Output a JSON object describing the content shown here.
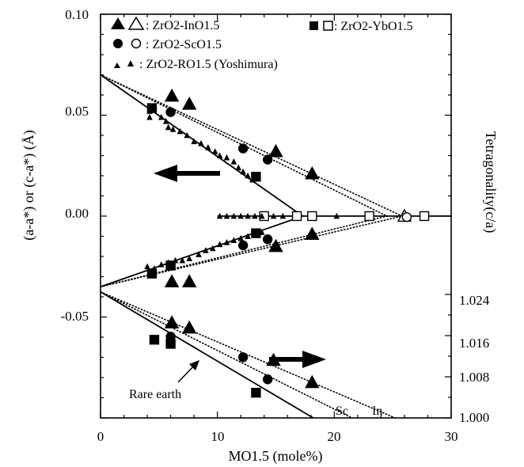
{
  "chart_data": {
    "type": "scatter",
    "title": "",
    "xlabel": "MO1.5 (mole%)",
    "ylabel_left": "(a-a*) or (c-a*) (Å)",
    "ylabel_right": "Tetragonality(c/a)",
    "xlim": [
      0,
      30
    ],
    "ylim": [
      -0.1,
      0.1
    ],
    "x_ticks": [
      "0",
      "10",
      "20",
      "30"
    ],
    "y_ticks_left": [
      "0.10",
      "0.05",
      "0.00",
      "-0.05"
    ],
    "y_ticks_right": [
      "1.024",
      "1.016",
      "1.008",
      "1.000"
    ],
    "right_axis_range": [
      1.0,
      1.03
    ],
    "legend": [
      {
        "symbols": "▲△",
        "label": ": ZrO2-InO1.5"
      },
      {
        "symbols": "●○",
        "label": ": ZrO2-ScO1.5"
      },
      {
        "symbols": "▴▴",
        "label": ": ZrO2-RO1.5 (Yoshimura)"
      },
      {
        "symbols": "■□",
        "label": ": ZrO2-YbO1.5"
      }
    ],
    "annotations": {
      "rare_earth": "Rare earth",
      "sc": "Sc",
      "in": "In"
    },
    "series": [
      {
        "name": "ZrO2-InO1.5 (a-a*)",
        "marker": "triangle-filled",
        "points": [
          [
            6.1,
            0.0595
          ],
          [
            7.6,
            0.0555
          ],
          [
            15,
            0.032
          ],
          [
            18.1,
            0.021
          ]
        ]
      },
      {
        "name": "ZrO2-InO1.5 (c-a*)",
        "marker": "triangle-filled",
        "points": [
          [
            6.1,
            -0.0325
          ],
          [
            7.6,
            -0.0325
          ],
          [
            15,
            -0.015
          ],
          [
            18.1,
            -0.009
          ]
        ]
      },
      {
        "name": "ZrO2-InO1.5 (c/a)",
        "marker": "triangle-filled",
        "right_axis": true,
        "points": [
          [
            6.1,
            1.0185
          ],
          [
            7.6,
            1.0175
          ],
          [
            14.8,
            1.0112
          ],
          [
            18.1,
            1.0069
          ]
        ]
      },
      {
        "name": "ZrO2-InO1.5 (cubic)",
        "marker": "triangle-open",
        "points": [
          [
            26,
            0.0
          ]
        ]
      },
      {
        "name": "ZrO2-ScO1.5 (a-a*)",
        "marker": "circle-filled",
        "points": [
          [
            6.0,
            0.0515
          ],
          [
            12.2,
            0.0335
          ],
          [
            14.3,
            0.028
          ]
        ]
      },
      {
        "name": "ZrO2-ScO1.5 (c-a*)",
        "marker": "circle-filled",
        "points": [
          [
            6.0,
            -0.0245
          ],
          [
            12.2,
            -0.0145
          ],
          [
            14.3,
            -0.0115
          ]
        ]
      },
      {
        "name": "ZrO2-ScO1.5 (c/a)",
        "marker": "circle-filled",
        "right_axis": true,
        "points": [
          [
            6.0,
            1.0158
          ],
          [
            12.2,
            1.0118
          ],
          [
            14.3,
            1.0075
          ]
        ]
      },
      {
        "name": "ZrO2-ScO1.5 (cubic)",
        "marker": "circle-open",
        "points": [
          [
            26.2,
            -0.0005
          ]
        ]
      },
      {
        "name": "ZrO2-YbO1.5 (a-a*)",
        "marker": "square-filled",
        "points": [
          [
            4.4,
            0.0535
          ],
          [
            13.3,
            0.0195
          ]
        ]
      },
      {
        "name": "ZrO2-YbO1.5 (c-a*)",
        "marker": "square-filled",
        "points": [
          [
            4.4,
            -0.0285
          ],
          [
            6.0,
            -0.0245
          ],
          [
            13.3,
            -0.0085
          ]
        ]
      },
      {
        "name": "ZrO2-YbO1.5 (c/a)",
        "marker": "square-filled",
        "right_axis": true,
        "points": [
          [
            4.6,
            1.0152
          ],
          [
            6.0,
            1.0144
          ],
          [
            13.3,
            1.0049
          ]
        ]
      },
      {
        "name": "ZrO2-YbO1.5 (cubic)",
        "marker": "square-open",
        "points": [
          [
            14,
            0.0
          ],
          [
            16.8,
            0.0
          ],
          [
            18.1,
            0.0
          ],
          [
            23,
            0.0
          ],
          [
            27.7,
            0.0
          ]
        ]
      },
      {
        "name": "ZrO2-RO1.5 (Yoshimura) (a-a*)",
        "marker": "small-triangle",
        "points": [
          [
            4.2,
            0.049
          ],
          [
            4.2,
            0.052
          ],
          [
            5.2,
            0.049
          ],
          [
            5.6,
            0.047
          ],
          [
            5.8,
            0.044
          ],
          [
            6.2,
            0.043
          ],
          [
            6.8,
            0.042
          ],
          [
            7.4,
            0.04
          ],
          [
            8.0,
            0.037
          ],
          [
            8.6,
            0.036
          ],
          [
            9.2,
            0.034
          ],
          [
            9.8,
            0.032
          ],
          [
            10.2,
            0.03
          ],
          [
            10.8,
            0.029
          ],
          [
            11.4,
            0.027
          ],
          [
            11.8,
            0.024
          ],
          [
            12.2,
            0.022
          ],
          [
            12.6,
            0.02
          ],
          [
            13.0,
            0.018
          ]
        ]
      },
      {
        "name": "ZrO2-RO1.5 (Yoshimura) (c-a*)",
        "marker": "small-triangle",
        "points": [
          [
            4.0,
            -0.025
          ],
          [
            4.6,
            -0.026
          ],
          [
            5.2,
            -0.024
          ],
          [
            5.8,
            -0.023
          ],
          [
            6.4,
            -0.022
          ],
          [
            7.0,
            -0.022
          ],
          [
            7.6,
            -0.021
          ],
          [
            8.4,
            -0.019
          ],
          [
            9.0,
            -0.017
          ],
          [
            9.6,
            -0.016
          ],
          [
            10.2,
            -0.014
          ],
          [
            10.8,
            -0.013
          ],
          [
            11.4,
            -0.012
          ],
          [
            12.0,
            -0.011
          ],
          [
            12.6,
            -0.01
          ],
          [
            13.2,
            -0.009
          ],
          [
            13.8,
            -0.008
          ]
        ]
      },
      {
        "name": "ZrO2-RO1.5 (Yoshimura) (cubic)",
        "marker": "small-triangle",
        "points": [
          [
            10.2,
            0.0
          ],
          [
            10.8,
            0.0
          ],
          [
            11.4,
            0.0
          ],
          [
            12.0,
            0.0
          ],
          [
            12.6,
            0.0
          ],
          [
            13.2,
            0.0
          ],
          [
            13.8,
            0.0
          ],
          [
            14.8,
            0.0
          ],
          [
            15.6,
            0.0
          ],
          [
            20.2,
            0.0
          ]
        ]
      }
    ],
    "lines": [
      {
        "name": "Rare earth a",
        "style": "solid",
        "from": [
          0,
          0.07
        ],
        "to": [
          17.3,
          0.0
        ]
      },
      {
        "name": "Rare earth c",
        "style": "solid",
        "from": [
          0,
          -0.035
        ],
        "to": [
          17.3,
          0.0
        ]
      },
      {
        "name": "Rare earth c/a",
        "style": "solid",
        "right_axis": true,
        "from": [
          0,
          1.0245
        ],
        "to": [
          18.2,
          1.0
        ]
      },
      {
        "name": "Sc a",
        "style": "dotted",
        "from": [
          0,
          0.07
        ],
        "to": [
          24.5,
          0.0
        ]
      },
      {
        "name": "Sc c",
        "style": "dotted",
        "from": [
          0,
          -0.035
        ],
        "to": [
          24.5,
          0.0
        ]
      },
      {
        "name": "In a",
        "style": "dotted",
        "from": [
          0,
          0.07
        ],
        "to": [
          25.8,
          0.0
        ]
      },
      {
        "name": "In c",
        "style": "dotted",
        "from": [
          0,
          -0.035
        ],
        "to": [
          25.8,
          0.0
        ]
      },
      {
        "name": "Sc c/a",
        "style": "dotted",
        "right_axis": true,
        "from": [
          0,
          1.0245
        ],
        "to": [
          21.5,
          1.0
        ]
      },
      {
        "name": "In c/a",
        "style": "dotted",
        "right_axis": true,
        "from": [
          0,
          1.0245
        ],
        "to": [
          25.2,
          1.0
        ]
      },
      {
        "name": "cubic baseline",
        "style": "solid",
        "from": [
          10,
          0.0
        ],
        "to": [
          30,
          0.0
        ]
      }
    ]
  }
}
